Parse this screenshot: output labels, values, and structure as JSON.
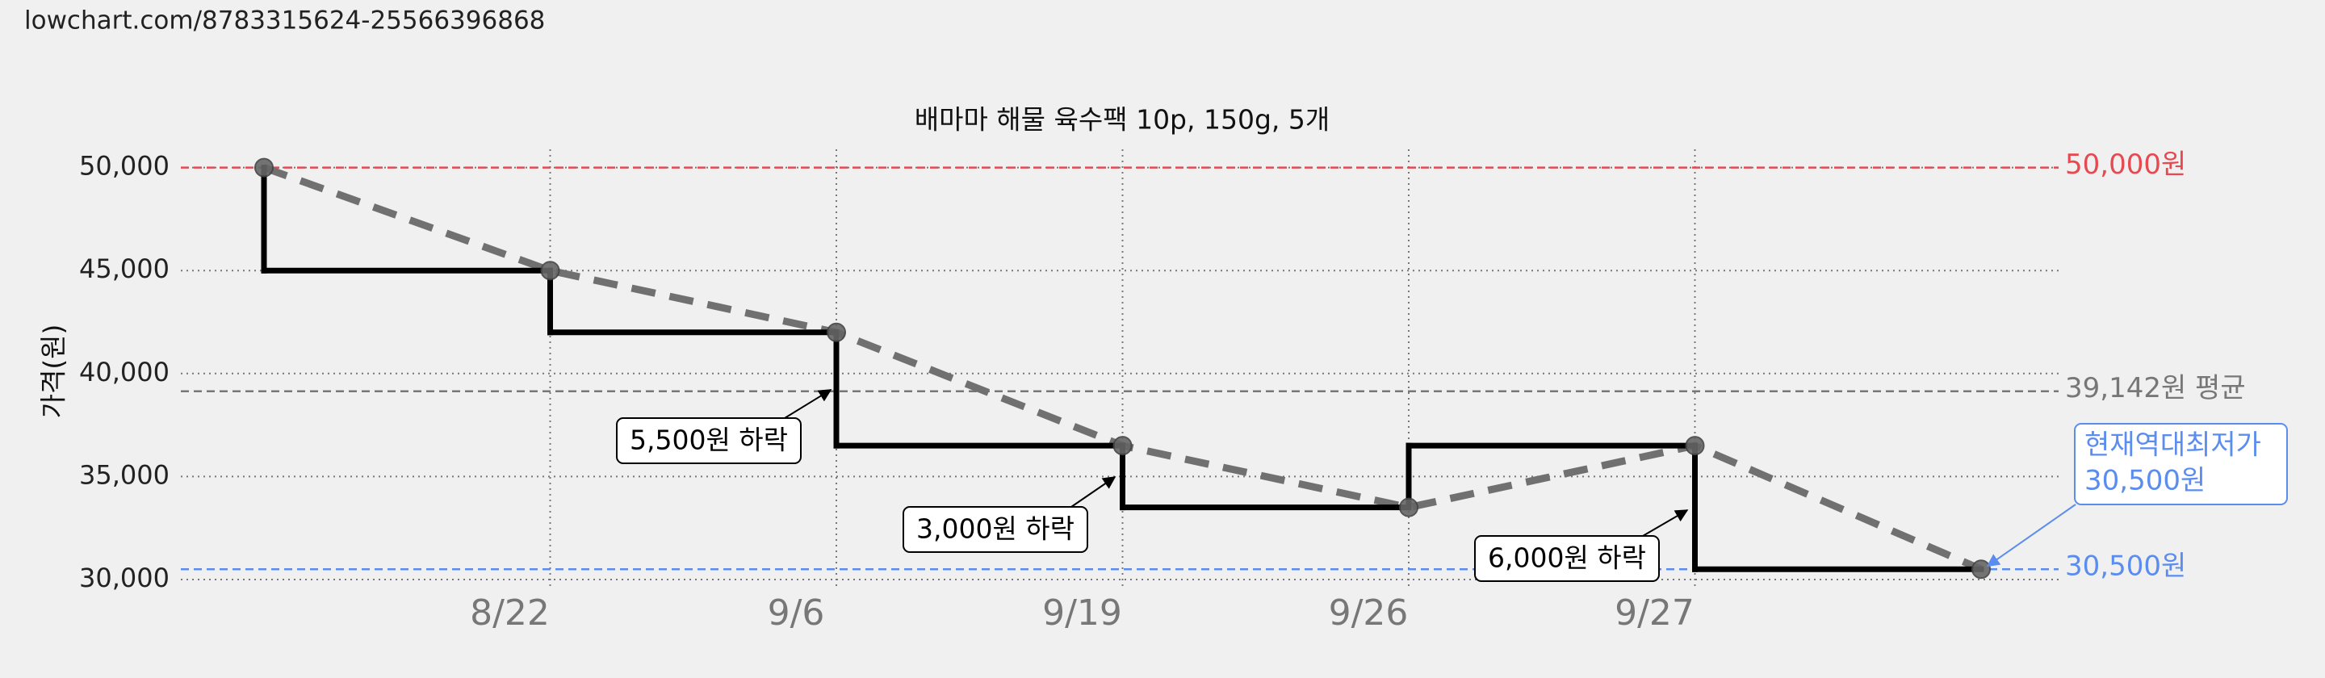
{
  "url": "lowchart.com/8783315624-25566396868",
  "chart_data": {
    "type": "step",
    "title": "배마마 해물 육수팩 10p, 150g, 5개",
    "y_label": "가격(원)",
    "categories": [
      null,
      "8/22",
      "9/6",
      "9/19",
      "9/26",
      "9/27",
      null
    ],
    "values": [
      50000,
      45000,
      42000,
      36500,
      33500,
      36500,
      30500
    ],
    "color": "#000000",
    "trend_color": "#707070",
    "ylim": [
      30000,
      50000
    ],
    "yticks": [
      {
        "value": 30000,
        "label": "30,000"
      },
      {
        "value": 35000,
        "label": "35,000"
      },
      {
        "value": 40000,
        "label": "40,000"
      },
      {
        "value": 45000,
        "label": "45,000"
      },
      {
        "value": 50000,
        "label": "50,000"
      }
    ],
    "grid": true,
    "reference_lines": [
      {
        "value": 50000,
        "label": "50,000원",
        "color": "#e8484f"
      },
      {
        "value": 39142,
        "label": "39,142원 평균",
        "color": "#777777"
      },
      {
        "value": 30500,
        "label": "30,500원",
        "color": "#5b8def"
      }
    ],
    "annotations": [
      {
        "text": "5,500원 하락"
      },
      {
        "text": "3,000원 하락"
      },
      {
        "text": "6,000원 하락"
      }
    ],
    "low_note": {
      "lines": [
        "현재역대최저가",
        "30,500원"
      ],
      "color": "#5b8def"
    }
  }
}
